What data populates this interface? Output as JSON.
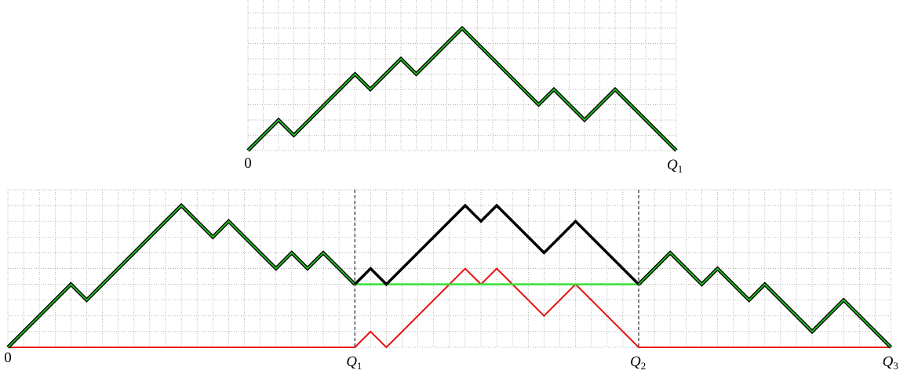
{
  "top": {
    "origin_label": "0",
    "end_label": {
      "letter": "Q",
      "subscript": "1"
    }
  },
  "bottom": {
    "origin_label": "0",
    "markers": [
      {
        "letter": "Q",
        "subscript": "1"
      },
      {
        "letter": "Q",
        "subscript": "2"
      },
      {
        "letter": "Q",
        "subscript": "3"
      }
    ]
  }
}
